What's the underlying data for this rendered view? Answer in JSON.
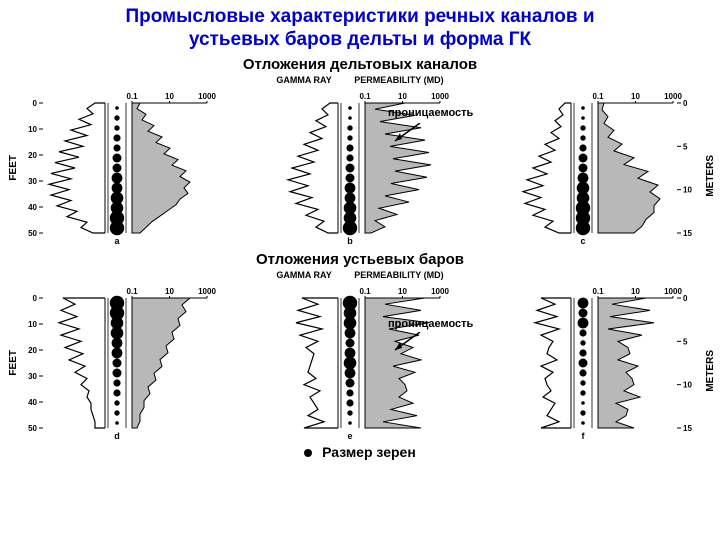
{
  "title_line1": "Промысловые характеристики речных каналов и",
  "title_line2": "устьевых баров дельты и форма ГК",
  "title_color": "#0000cc",
  "title_fontsize": 19,
  "section1_title": "Отложения дельтовых каналов",
  "section2_title": "Отложения устьевых баров",
  "axis_header_gamma": "GAMMA RAY",
  "axis_header_perm": "PERMEABILITY (MD)",
  "feet_label": "FEET",
  "meters_label": "METERS",
  "annotation_perm": "проницаемость",
  "grain_size_label": "Размер зерен",
  "perm_ticks": [
    "0.1",
    "10",
    "1000"
  ],
  "feet_ticks": [
    0,
    10,
    20,
    30,
    40,
    50
  ],
  "meters_ticks": [
    0,
    5,
    10,
    15
  ],
  "colors": {
    "title": "#0000cc",
    "text": "#000000",
    "curve": "#000000",
    "grain": "#000000",
    "perm_fill": "#b8b8b8",
    "background": "#ffffff",
    "border": "#000000"
  },
  "panels_top": [
    {
      "letter": "a",
      "gamma_profile": [
        10,
        18,
        12,
        26,
        14,
        34,
        18,
        40,
        22,
        46,
        26,
        50,
        30,
        54,
        34,
        56,
        36,
        54,
        34,
        48,
        28,
        38,
        18,
        24,
        12
      ],
      "grain_sizes": [
        2,
        3,
        3,
        4,
        4,
        5,
        5,
        6,
        6,
        7,
        7,
        8,
        8
      ],
      "perm_bars": [
        8,
        5,
        14,
        10,
        22,
        16,
        30,
        24,
        38,
        32,
        46,
        40,
        54,
        48,
        58,
        52,
        56,
        48,
        44,
        36,
        28,
        20,
        14,
        8
      ],
      "depth_feet": 50,
      "depth_m": 15
    },
    {
      "letter": "b",
      "gamma_profile": [
        8,
        16,
        10,
        22,
        12,
        28,
        16,
        34,
        20,
        40,
        24,
        46,
        28,
        50,
        30,
        48,
        26,
        42,
        20,
        32,
        14,
        22,
        10
      ],
      "grain_sizes": [
        2,
        2,
        3,
        3,
        4,
        4,
        5,
        5,
        6,
        6,
        7,
        7,
        8
      ],
      "perm_bars": [
        40,
        10,
        50,
        15,
        56,
        20,
        60,
        25,
        64,
        28,
        66,
        30,
        62,
        26,
        54,
        20,
        44,
        14,
        32,
        10,
        20,
        6
      ],
      "depth_feet": 50,
      "depth_m": 15
    },
    {
      "letter": "c",
      "gamma_profile": [
        6,
        12,
        8,
        16,
        10,
        20,
        12,
        26,
        16,
        32,
        20,
        38,
        24,
        44,
        28,
        48,
        30,
        46,
        26,
        38,
        18,
        26,
        12
      ],
      "grain_sizes": [
        2,
        2,
        3,
        3,
        4,
        5,
        5,
        6,
        7,
        7,
        8,
        8,
        8
      ],
      "perm_bars": [
        6,
        4,
        10,
        6,
        16,
        10,
        24,
        16,
        36,
        26,
        50,
        40,
        60,
        52,
        62,
        56,
        56,
        48,
        44,
        36
      ],
      "depth_feet": 50,
      "depth_m": 15
    }
  ],
  "panels_bottom": [
    {
      "letter": "d",
      "gamma_profile": [
        42,
        30,
        44,
        28,
        46,
        26,
        44,
        24,
        40,
        22,
        36,
        20,
        30,
        18,
        24,
        16,
        18,
        14,
        14,
        12,
        10,
        10
      ],
      "grain_sizes": [
        8,
        8,
        7,
        7,
        6,
        6,
        5,
        5,
        4,
        4,
        3,
        3,
        2
      ],
      "perm_bars": [
        58,
        50,
        54,
        46,
        48,
        40,
        42,
        34,
        36,
        28,
        30,
        22,
        24,
        16,
        18,
        12,
        12,
        8,
        8,
        5
      ],
      "depth_feet": 50,
      "depth_m": 15
    },
    {
      "letter": "e",
      "gamma_profile": [
        36,
        20,
        40,
        18,
        42,
        16,
        38,
        20,
        32,
        24,
        26,
        28,
        30,
        22,
        34,
        18,
        28,
        24,
        20,
        30,
        14,
        34
      ],
      "grain_sizes": [
        8,
        7,
        7,
        6,
        5,
        6,
        7,
        6,
        5,
        4,
        4,
        3,
        2
      ],
      "perm_bars": [
        60,
        20,
        56,
        18,
        64,
        24,
        54,
        30,
        48,
        36,
        56,
        28,
        50,
        34,
        40,
        42,
        34,
        48,
        26,
        52,
        18,
        56
      ],
      "depth_feet": 50,
      "depth_m": 15
    },
    {
      "letter": "f",
      "gamma_profile": [
        30,
        16,
        34,
        14,
        36,
        12,
        30,
        18,
        22,
        24,
        14,
        30,
        18,
        26,
        24,
        20,
        28,
        16,
        20,
        24,
        12,
        30
      ],
      "grain_sizes": [
        6,
        5,
        6,
        4,
        3,
        4,
        5,
        4,
        3,
        3,
        2,
        3,
        2
      ],
      "perm_bars": [
        48,
        14,
        52,
        12,
        56,
        10,
        44,
        20,
        30,
        32,
        20,
        40,
        28,
        34,
        36,
        26,
        42,
        18,
        30,
        28,
        18,
        36
      ],
      "depth_feet": 50,
      "depth_m": 15
    }
  ]
}
